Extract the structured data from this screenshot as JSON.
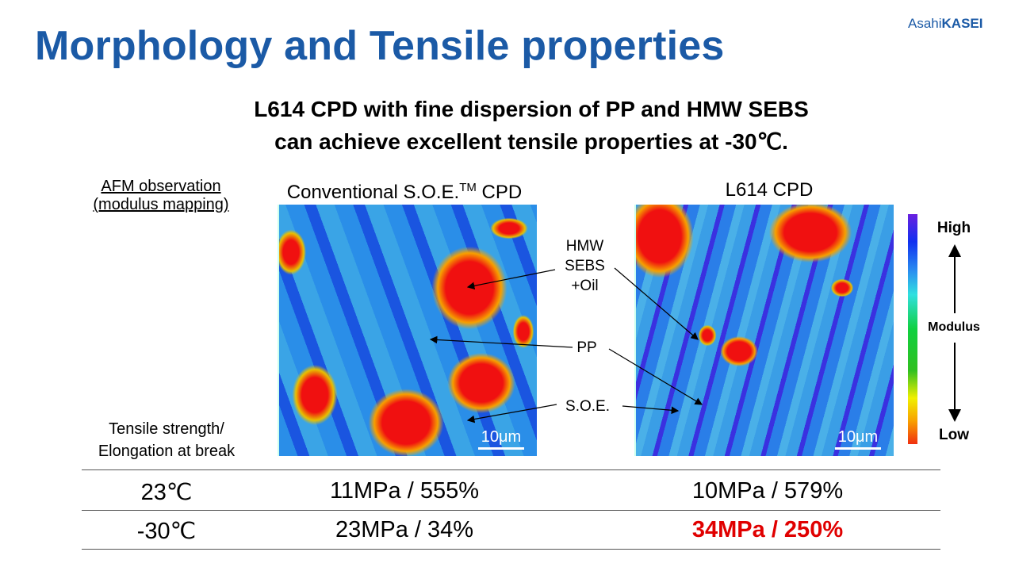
{
  "title": "Morphology and Tensile properties",
  "logo": {
    "part1": "Asahi",
    "part2": "KASEI"
  },
  "subtitle": {
    "line1": "L614 CPD with fine dispersion of PP and HMW SEBS",
    "line2": "can achieve excellent tensile properties at -30℃."
  },
  "afm_label": {
    "line1": "AFM observation",
    "line2": "(modulus mapping)"
  },
  "images": {
    "left_title": "Conventional S.O.E.",
    "left_title_sup": "TM",
    "left_title_suffix": " CPD",
    "right_title": "L614 CPD",
    "scale_bar": "10μm"
  },
  "annotations": {
    "hmw_line1": "HMW",
    "hmw_line2": "SEBS",
    "hmw_line3": "+Oil",
    "pp": "PP",
    "soe": "S.O.E."
  },
  "colorbar": {
    "high": "High",
    "mid": "Modulus",
    "low": "Low"
  },
  "table": {
    "header_line1": "Tensile strength/",
    "header_line2": "Elongation at break",
    "rows": [
      {
        "temp": "23℃",
        "conventional": "11MPa / 555%",
        "l614": "10MPa / 579%"
      },
      {
        "temp": "-30℃",
        "conventional": "23MPa / 34%",
        "l614": "34MPa / 250%"
      }
    ]
  },
  "colors": {
    "title": "#1b5aa6",
    "highlight": "#e00000"
  }
}
